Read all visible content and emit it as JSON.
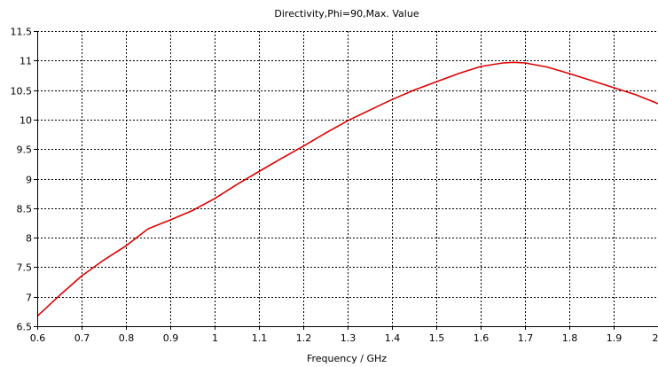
{
  "chart_data": {
    "type": "line",
    "title": "Directivity,Phi=90,Max. Value",
    "xlabel": "Frequency / GHz",
    "ylabel": "",
    "xlim": [
      0.6,
      2.0
    ],
    "ylim": [
      6.5,
      11.5
    ],
    "grid": true,
    "x_ticks": [
      "0.6",
      "0.7",
      "0.8",
      "0.9",
      "1",
      "1.1",
      "1.2",
      "1.3",
      "1.4",
      "1.5",
      "1.6",
      "1.7",
      "1.8",
      "1.9",
      "2"
    ],
    "y_ticks": [
      "6.5",
      "7",
      "7.5",
      "8",
      "8.5",
      "9",
      "9.5",
      "10",
      "10.5",
      "11",
      "11.5"
    ],
    "series": [
      {
        "name": "",
        "color": "#e00000",
        "x": [
          0.6,
          0.65,
          0.7,
          0.75,
          0.8,
          0.85,
          0.9,
          0.95,
          1.0,
          1.05,
          1.1,
          1.15,
          1.2,
          1.25,
          1.3,
          1.35,
          1.4,
          1.45,
          1.5,
          1.55,
          1.6,
          1.65,
          1.675,
          1.7,
          1.75,
          1.8,
          1.85,
          1.9,
          1.95,
          2.0
        ],
        "y": [
          6.67,
          7.02,
          7.35,
          7.62,
          7.86,
          8.15,
          8.3,
          8.46,
          8.66,
          8.9,
          9.12,
          9.34,
          9.55,
          9.77,
          9.98,
          10.16,
          10.34,
          10.5,
          10.64,
          10.78,
          10.9,
          10.96,
          10.97,
          10.96,
          10.89,
          10.78,
          10.66,
          10.54,
          10.42,
          10.27
        ]
      }
    ]
  }
}
